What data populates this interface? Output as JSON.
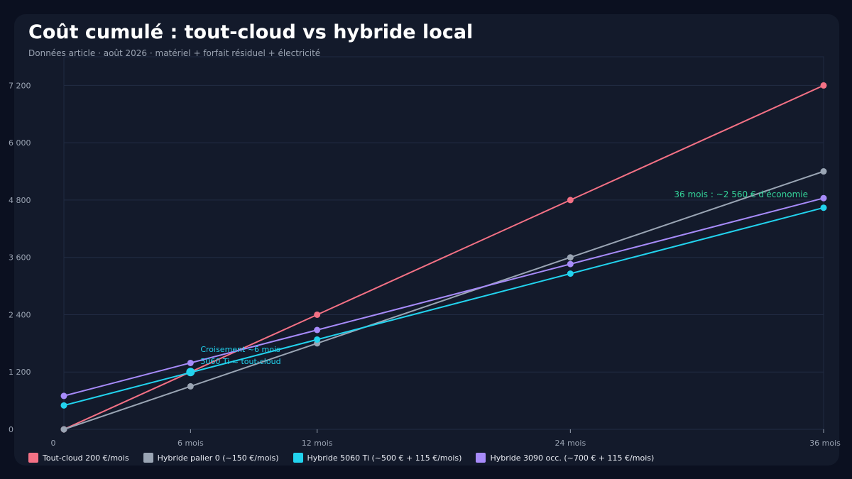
{
  "title": "Coût cumulé : tout-cloud vs hybride local",
  "subtitle": "Données article · août 2026 · matériel + forfait résiduel + électricité",
  "chart_data": {
    "type": "line",
    "title": "Coût cumulé : tout-cloud vs hybride local",
    "subtitle": "Données article · août 2026 · matériel + forfait résiduel + électricité",
    "xlabel": "",
    "ylabel": "",
    "x": [
      0,
      6,
      12,
      24,
      36
    ],
    "x_tick_labels": [
      "0",
      "6 mois",
      "12 mois",
      "24 mois",
      "36 mois"
    ],
    "xlim": [
      0,
      36
    ],
    "y_ticks": [
      0,
      1200,
      2400,
      3600,
      4800,
      6000,
      7200
    ],
    "y_tick_labels": [
      "0",
      "1 200",
      "2 400",
      "3 600",
      "4 800",
      "6 000",
      "7 200"
    ],
    "ylim": [
      0,
      7800
    ],
    "grid": true,
    "legend_position": "bottom",
    "series": [
      {
        "name": "Tout-cloud 200 €/mois",
        "color": "#f47185",
        "values": [
          0,
          1200,
          2400,
          4800,
          7200
        ]
      },
      {
        "name": "Hybride palier 0 (~150 €/mois)",
        "color": "#9aa5b4",
        "values": [
          0,
          900,
          1800,
          3600,
          5400
        ]
      },
      {
        "name": "Hybride 5060 Ti (~500 € + 115 €/mois)",
        "color": "#22d3ee",
        "values": [
          500,
          1190,
          1880,
          3260,
          4640
        ]
      },
      {
        "name": "Hybride 3090 occ. (~700 € + 115 €/mois)",
        "color": "#a78bfa",
        "values": [
          700,
          1390,
          2080,
          3460,
          4840
        ]
      }
    ],
    "annotations": [
      {
        "text_lines": [
          "Croisement ~6 mois",
          "5060 Ti ≈ tout-cloud"
        ],
        "x": 6,
        "y": 1200,
        "color": "#22d3ee"
      },
      {
        "text": "36 mois : ~2 560 € d'économie",
        "x": 36,
        "y": 4800,
        "color": "#34d399"
      }
    ]
  }
}
